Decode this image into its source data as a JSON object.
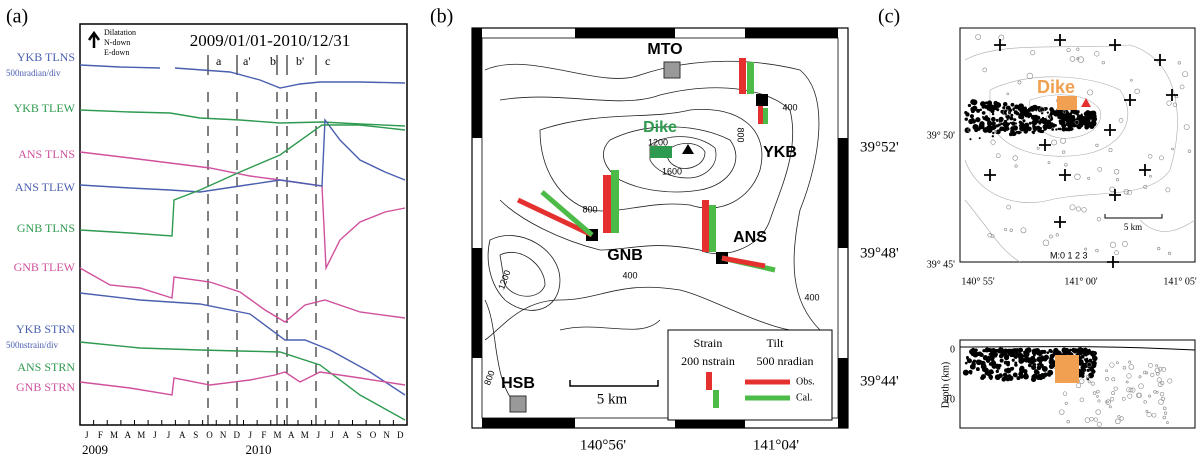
{
  "panel_a": {
    "label": "(a)",
    "legend": [
      "Dilatation",
      "N-down",
      "E-down"
    ],
    "period": "2009/01/01-2010/12/31",
    "events": [
      "a",
      "a'",
      "b",
      "b'",
      "c"
    ],
    "series": [
      {
        "name": "YKB TLNS",
        "scale": "500nradian/div",
        "color": "#4a5fb0"
      },
      {
        "name": "YKB TLEW",
        "color": "#2e9a4f"
      },
      {
        "name": "ANS TLNS",
        "color": "#d0509c"
      },
      {
        "name": "ANS TLEW",
        "color": "#4a5fb0"
      },
      {
        "name": "GNB TLNS",
        "color": "#2e9a4f"
      },
      {
        "name": "GNB TLEW",
        "color": "#d0509c"
      },
      {
        "name": "YKB STRN",
        "scale": "500nstrain/div",
        "color": "#4a5fb0"
      },
      {
        "name": "ANS STRN",
        "color": "#2e9a4f"
      },
      {
        "name": "GNB STRN",
        "color": "#d0509c"
      }
    ],
    "months": [
      "J",
      "F",
      "M",
      "A",
      "M",
      "J",
      "J",
      "A",
      "S",
      "O",
      "N",
      "D",
      "J",
      "F",
      "M",
      "A",
      "M",
      "J",
      "J",
      "A",
      "S",
      "O",
      "N",
      "D"
    ],
    "years": [
      "2009",
      "2010"
    ]
  },
  "panel_b": {
    "label": "(b)",
    "stations": [
      "MTO",
      "YKB",
      "GNB",
      "ANS",
      "HSB"
    ],
    "dike": "Dike",
    "contours": [
      "1200",
      "800",
      "1600",
      "800",
      "400",
      "400",
      "400",
      "1200",
      "800"
    ],
    "lat": [
      "39°52'",
      "39°48'",
      "39°44'"
    ],
    "lon": [
      "140°56'",
      "141°04'"
    ],
    "scale": "5 km",
    "legend": {
      "strain": "Strain",
      "tilt": "Tilt",
      "strain_unit": "200 nstrain",
      "tilt_unit": "500 nradian",
      "obs": "Obs.",
      "cal": "Cal."
    }
  },
  "panel_c": {
    "label": "(c)",
    "dike": "Dike",
    "lat": [
      "39° 50'",
      "39° 45'"
    ],
    "lon": [
      "140° 55'",
      "141° 00'",
      "141° 05'"
    ],
    "scale": "5 km",
    "magnitude": "M:0 1 2 3",
    "depth_label": "Depth (km)",
    "depth_ticks": [
      "0",
      "10"
    ]
  }
}
